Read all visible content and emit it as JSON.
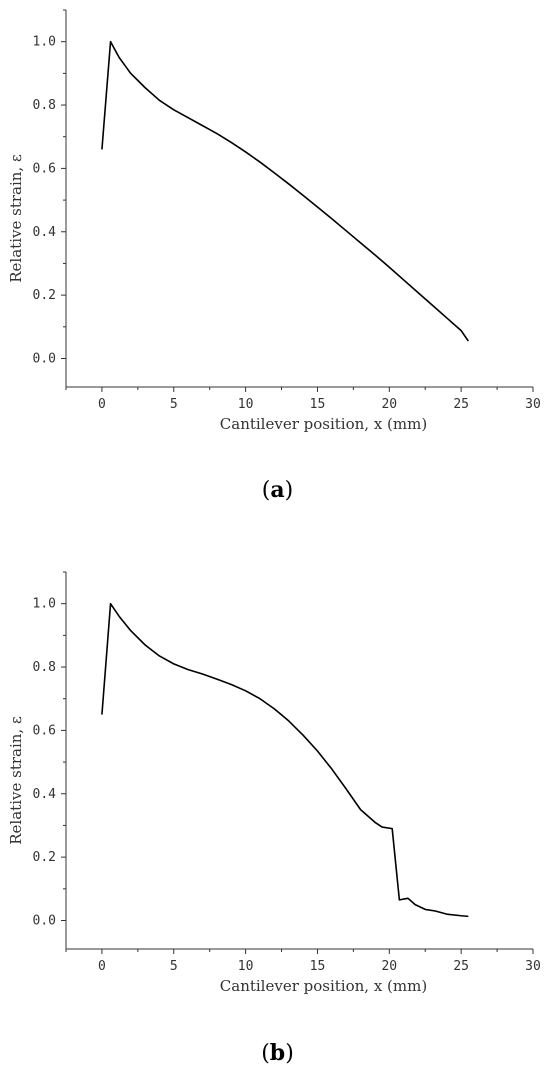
{
  "colors": {
    "line": "#000000",
    "axis": "#333333"
  },
  "chart_data": [
    {
      "type": "line",
      "panel_label": "a",
      "xlabel": "Cantilever position, x (mm)",
      "ylabel": "Relative strain, ε",
      "xlim": [
        -2.5,
        30
      ],
      "ylim": [
        -0.09,
        1.1
      ],
      "xticks": [
        "0",
        "5",
        "10",
        "15",
        "20",
        "25",
        "30"
      ],
      "yticks": [
        "0.0",
        "0.2",
        "0.4",
        "0.6",
        "0.8",
        "1.0"
      ],
      "grid": false,
      "series": [
        {
          "x": [
            0,
            0.6,
            1.2,
            2,
            3,
            4,
            5,
            6,
            7,
            8,
            9,
            10,
            11,
            12,
            13,
            14,
            15,
            16,
            17,
            18,
            19,
            20,
            21,
            22,
            23,
            24,
            25,
            25.5
          ],
          "y": [
            0.66,
            1.0,
            0.95,
            0.9,
            0.855,
            0.815,
            0.785,
            0.76,
            0.735,
            0.71,
            0.682,
            0.652,
            0.62,
            0.586,
            0.551,
            0.515,
            0.478,
            0.441,
            0.403,
            0.365,
            0.327,
            0.288,
            0.248,
            0.208,
            0.168,
            0.128,
            0.088,
            0.055
          ]
        }
      ]
    },
    {
      "type": "line",
      "panel_label": "b",
      "xlabel": "Cantilever position, x (mm)",
      "ylabel": "Relative strain, ε",
      "xlim": [
        -2.5,
        30
      ],
      "ylim": [
        -0.09,
        1.1
      ],
      "xticks": [
        "0",
        "5",
        "10",
        "15",
        "20",
        "25",
        "30"
      ],
      "yticks": [
        "0.0",
        "0.2",
        "0.4",
        "0.6",
        "0.8",
        "1.0"
      ],
      "grid": false,
      "series": [
        {
          "x": [
            0,
            0.6,
            1.2,
            2,
            3,
            4,
            5,
            6,
            7,
            8,
            9,
            10,
            11,
            12,
            13,
            14,
            15,
            16,
            17,
            18,
            19,
            19.5,
            20.2,
            20.7,
            21.3,
            21.8,
            22.5,
            23.2,
            24,
            25,
            25.5
          ],
          "y": [
            0.65,
            1.0,
            0.96,
            0.915,
            0.87,
            0.835,
            0.81,
            0.792,
            0.778,
            0.762,
            0.745,
            0.725,
            0.7,
            0.668,
            0.63,
            0.585,
            0.535,
            0.478,
            0.415,
            0.35,
            0.31,
            0.295,
            0.29,
            0.065,
            0.07,
            0.05,
            0.035,
            0.03,
            0.02,
            0.015,
            0.013
          ]
        }
      ]
    }
  ]
}
